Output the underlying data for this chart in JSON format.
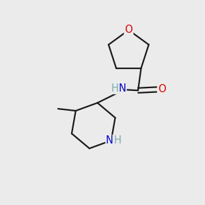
{
  "background_color": "#ebebeb",
  "bond_color": "#1a1a1a",
  "bond_width": 1.6,
  "atom_colors": {
    "O": "#dd0000",
    "N": "#0000cc",
    "H": "#7aacac"
  },
  "font_size": 10.5,
  "fig_size": [
    3.0,
    3.0
  ],
  "dpi": 100
}
